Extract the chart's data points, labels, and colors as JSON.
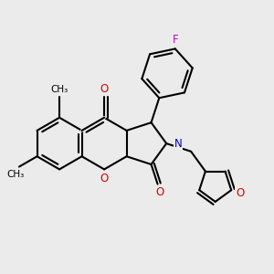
{
  "bg": "#ebebeb",
  "bond_color": "#000000",
  "lw": 1.5,
  "red": "#dd0000",
  "blue": "#0000cc",
  "magenta": "#cc00cc",
  "black": "#000000",
  "figsize": [
    3.0,
    3.0
  ],
  "dpi": 100,
  "xlim": [
    -0.5,
    9.5
  ],
  "ylim": [
    -4.5,
    6.0
  ]
}
